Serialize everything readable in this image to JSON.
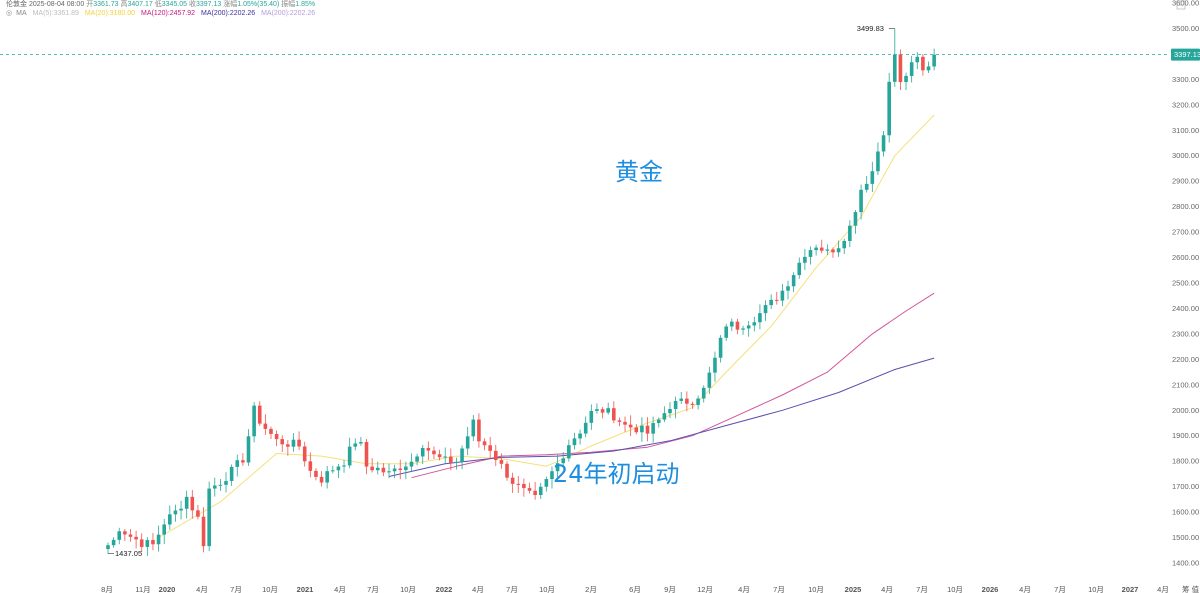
{
  "header": {
    "symbol": "伦敦金",
    "datetime": "2025-08-04 08:00",
    "open_label": "开",
    "open": "3361.73",
    "high_label": "高",
    "high": "3407.17",
    "low_label": "低",
    "low": "3345.05",
    "close_label": "收",
    "close": "3397.13",
    "change_label": "涨幅",
    "change": "1.05%(35.40)",
    "amp_label": "振幅",
    "amp": "1.85%"
  },
  "ma_legend": {
    "toggle_icon": "eye-icon",
    "label": "MA",
    "items": [
      {
        "text": "MA(5):3361.89",
        "color": "#bdbdbd"
      },
      {
        "text": "MA(20):3180.00",
        "color": "#f2d23a"
      },
      {
        "text": "MA(120):2457.92",
        "color": "#c2187a"
      },
      {
        "text": "MA(200):2202.26",
        "color": "#3b2e9e"
      },
      {
        "text": "MA(200):2202.26",
        "color": "#b39ddb"
      }
    ]
  },
  "chart_data": {
    "type": "candlestick",
    "title": "黄金",
    "annotation": "24年初启动",
    "ylim": [
      1400,
      3600
    ],
    "y_ticks": [
      1400,
      1500,
      1600,
      1700,
      1800,
      1900,
      2000,
      2100,
      2200,
      2300,
      2400,
      2500,
      2600,
      2700,
      2800,
      2900,
      3000,
      3100,
      3200,
      3300,
      3400,
      3500,
      3600
    ],
    "y_tick_labels": [
      "1400.00",
      "1500.00",
      "1600.00",
      "1700.00",
      "1800.00",
      "1900.00",
      "2000.00",
      "2100.00",
      "2200.00",
      "2300.00",
      "2400.00",
      "2500.00",
      "2600.00",
      "2700.00",
      "2800.00",
      "2900.00",
      "3000.00",
      "3100.00",
      "3200.00",
      "3300.00",
      "3400.00",
      "3500.00",
      "3600.00"
    ],
    "x_ticks": [
      {
        "label": "8月",
        "bold": false
      },
      {
        "label": "11月",
        "bold": false
      },
      {
        "label": "2020",
        "bold": true
      },
      {
        "label": "4月",
        "bold": false
      },
      {
        "label": "7月",
        "bold": false
      },
      {
        "label": "10月",
        "bold": false
      },
      {
        "label": "2021",
        "bold": true
      },
      {
        "label": "4月",
        "bold": false
      },
      {
        "label": "7月",
        "bold": false
      },
      {
        "label": "10月",
        "bold": false
      },
      {
        "label": "2022",
        "bold": true
      },
      {
        "label": "4月",
        "bold": false
      },
      {
        "label": "7月",
        "bold": false
      },
      {
        "label": "10月",
        "bold": false
      },
      {
        "label": "2月",
        "bold": false
      },
      {
        "label": "6月",
        "bold": false
      },
      {
        "label": "9月",
        "bold": false
      },
      {
        "label": "12月",
        "bold": false
      },
      {
        "label": "4月",
        "bold": false
      },
      {
        "label": "7月",
        "bold": false
      },
      {
        "label": "10月",
        "bold": false
      },
      {
        "label": "2025",
        "bold": true
      },
      {
        "label": "4月",
        "bold": false
      },
      {
        "label": "7月",
        "bold": false
      },
      {
        "label": "10月",
        "bold": false
      },
      {
        "label": "2026",
        "bold": true
      },
      {
        "label": "4月",
        "bold": false
      },
      {
        "label": "7月",
        "bold": false
      },
      {
        "label": "10月",
        "bold": false
      },
      {
        "label": "2027",
        "bold": true
      },
      {
        "label": "4月",
        "bold": false
      }
    ],
    "x_axis_corner": "筹 值",
    "last_price": "3397.13",
    "last_price_value": 3397.13,
    "max_label": "3499.83",
    "max_value": 3499.83,
    "min_label": "1437.05",
    "min_value": 1437.05,
    "up_color": "#26a69a",
    "down_color": "#ef5350",
    "price_anchors": [
      [
        0,
        1437
      ],
      [
        2,
        1540
      ],
      [
        4,
        1505
      ],
      [
        6,
        1480
      ],
      [
        8,
        1470
      ],
      [
        10,
        1560
      ],
      [
        12,
        1600
      ],
      [
        14,
        1660
      ],
      [
        16,
        1575
      ],
      [
        17,
        1480
      ],
      [
        18,
        1690
      ],
      [
        20,
        1720
      ],
      [
        22,
        1760
      ],
      [
        24,
        1810
      ],
      [
        25,
        1900
      ],
      [
        26,
        2000
      ],
      [
        27,
        1960
      ],
      [
        28,
        1930
      ],
      [
        30,
        1880
      ],
      [
        32,
        1870
      ],
      [
        34,
        1860
      ],
      [
        36,
        1760
      ],
      [
        38,
        1730
      ],
      [
        40,
        1770
      ],
      [
        42,
        1800
      ],
      [
        44,
        1880
      ],
      [
        45,
        1860
      ],
      [
        46,
        1780
      ],
      [
        48,
        1770
      ],
      [
        50,
        1750
      ],
      [
        52,
        1780
      ],
      [
        54,
        1800
      ],
      [
        56,
        1870
      ],
      [
        58,
        1820
      ],
      [
        60,
        1800
      ],
      [
        62,
        1800
      ],
      [
        64,
        1900
      ],
      [
        65,
        1950
      ],
      [
        66,
        1880
      ],
      [
        68,
        1850
      ],
      [
        70,
        1780
      ],
      [
        72,
        1720
      ],
      [
        74,
        1680
      ],
      [
        76,
        1650
      ],
      [
        78,
        1720
      ],
      [
        80,
        1790
      ],
      [
        82,
        1870
      ],
      [
        84,
        1920
      ],
      [
        86,
        1990
      ],
      [
        88,
        2000
      ],
      [
        90,
        1980
      ],
      [
        92,
        1940
      ],
      [
        94,
        1930
      ],
      [
        96,
        1910
      ],
      [
        98,
        1960
      ],
      [
        100,
        2020
      ],
      [
        102,
        2030
      ],
      [
        104,
        2040
      ],
      [
        106,
        2080
      ],
      [
        108,
        2200
      ],
      [
        110,
        2340
      ],
      [
        112,
        2330
      ],
      [
        114,
        2350
      ],
      [
        116,
        2380
      ],
      [
        118,
        2420
      ],
      [
        120,
        2470
      ],
      [
        122,
        2540
      ],
      [
        124,
        2620
      ],
      [
        126,
        2650
      ],
      [
        128,
        2620
      ],
      [
        130,
        2650
      ],
      [
        132,
        2720
      ],
      [
        134,
        2870
      ],
      [
        136,
        2940
      ],
      [
        138,
        3100
      ],
      [
        139,
        3280
      ],
      [
        140,
        3400
      ],
      [
        141,
        3280
      ],
      [
        142,
        3320
      ],
      [
        143,
        3350
      ],
      [
        144,
        3380
      ],
      [
        145,
        3330
      ],
      [
        146,
        3360
      ],
      [
        147,
        3397
      ]
    ],
    "ma_lines": [
      {
        "name": "MA(20)",
        "color": "#f5e07a",
        "points": [
          [
            9,
            1500
          ],
          [
            20,
            1640
          ],
          [
            30,
            1830
          ],
          [
            38,
            1820
          ],
          [
            46,
            1790
          ],
          [
            54,
            1790
          ],
          [
            62,
            1820
          ],
          [
            70,
            1810
          ],
          [
            78,
            1780
          ],
          [
            86,
            1860
          ],
          [
            96,
            1950
          ],
          [
            104,
            2010
          ],
          [
            110,
            2150
          ],
          [
            118,
            2330
          ],
          [
            126,
            2560
          ],
          [
            134,
            2760
          ],
          [
            140,
            3000
          ],
          [
            147,
            3160
          ]
        ]
      },
      {
        "name": "MA(120)",
        "color": "#d0559a",
        "points": [
          [
            54,
            1735
          ],
          [
            62,
            1780
          ],
          [
            70,
            1820
          ],
          [
            78,
            1825
          ],
          [
            86,
            1835
          ],
          [
            96,
            1855
          ],
          [
            104,
            1900
          ],
          [
            112,
            1980
          ],
          [
            120,
            2060
          ],
          [
            128,
            2150
          ],
          [
            136,
            2300
          ],
          [
            142,
            2390
          ],
          [
            147,
            2460
          ]
        ]
      },
      {
        "name": "MA(200)",
        "color": "#5a4fb0",
        "points": [
          [
            50,
            1740
          ],
          [
            60,
            1790
          ],
          [
            70,
            1815
          ],
          [
            80,
            1820
          ],
          [
            90,
            1840
          ],
          [
            100,
            1880
          ],
          [
            110,
            1940
          ],
          [
            120,
            2000
          ],
          [
            130,
            2070
          ],
          [
            140,
            2160
          ],
          [
            147,
            2205
          ]
        ]
      }
    ]
  }
}
